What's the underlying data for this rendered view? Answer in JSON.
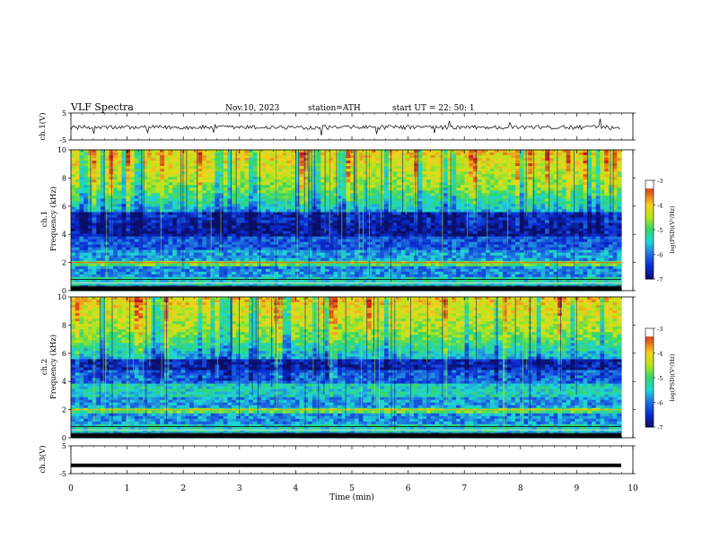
{
  "header": {
    "title": "VLF  Spectra",
    "date": "Nov.10, 2023",
    "station": "station=ATH",
    "start": "start  UT  =    22: 50: 1"
  },
  "colors": {
    "spectrogram": [
      "#0b0f66",
      "#0a2ad4",
      "#1f6fe0",
      "#1fd6d6",
      "#33d66a",
      "#b6e61c",
      "#f2d21f",
      "#e0601c",
      "#c01818"
    ],
    "trace": "#000000",
    "frame": "#000000"
  },
  "chart_data": [
    {
      "type": "line",
      "panel": "ch1-waveform",
      "ylabel": "ch.1(V)",
      "ylim": [
        -5,
        5
      ],
      "yticks": [
        "5",
        "-5"
      ],
      "xlim": [
        0,
        9.8
      ],
      "description_values": {
        "mean": 0.0,
        "amplitude_range": [
          -1.5,
          1.5
        ]
      }
    },
    {
      "type": "heatmap",
      "panel": "ch1-spectrogram",
      "ylabel": "ch.1\nFrequency (kHz)",
      "ylabel_lines": [
        "ch.1",
        "Frequency (kHz)"
      ],
      "ylim": [
        0,
        10
      ],
      "yticks": [
        "0",
        "2",
        "4",
        "6",
        "8",
        "10"
      ],
      "colorbar": {
        "label": "log(PSD)(V²/Hz)",
        "range": [
          -7,
          -3
        ],
        "ticks": [
          "-3",
          "-4",
          "-5",
          "-6",
          "-7"
        ]
      }
    },
    {
      "type": "heatmap",
      "panel": "ch2-spectrogram",
      "ylabel": "ch.2\nFrequency (kHz)",
      "ylabel_lines": [
        "ch.2",
        "Frequency (kHz)"
      ],
      "ylim": [
        0,
        10
      ],
      "yticks": [
        "0",
        "2",
        "4",
        "6",
        "8",
        "10"
      ],
      "colorbar": {
        "label": "log(PSD)(V²/Hz)",
        "range": [
          -7,
          -3
        ],
        "ticks": [
          "-3",
          "-4",
          "-5",
          "-6",
          "-7"
        ]
      }
    },
    {
      "type": "line",
      "panel": "ch3-waveform",
      "ylabel": "ch.3(V)",
      "ylim": [
        -5,
        5
      ],
      "yticks": [
        "5",
        "-5"
      ],
      "xlim": [
        0,
        9.8
      ],
      "description_values": {
        "mean": -2.0,
        "amplitude_range": [
          -2.2,
          -1.8
        ]
      }
    }
  ],
  "xaxis": {
    "label": "Time  (min)",
    "range": [
      0,
      10
    ],
    "ticks": [
      "0",
      "1",
      "2",
      "3",
      "4",
      "5",
      "6",
      "7",
      "8",
      "9",
      "10"
    ]
  }
}
